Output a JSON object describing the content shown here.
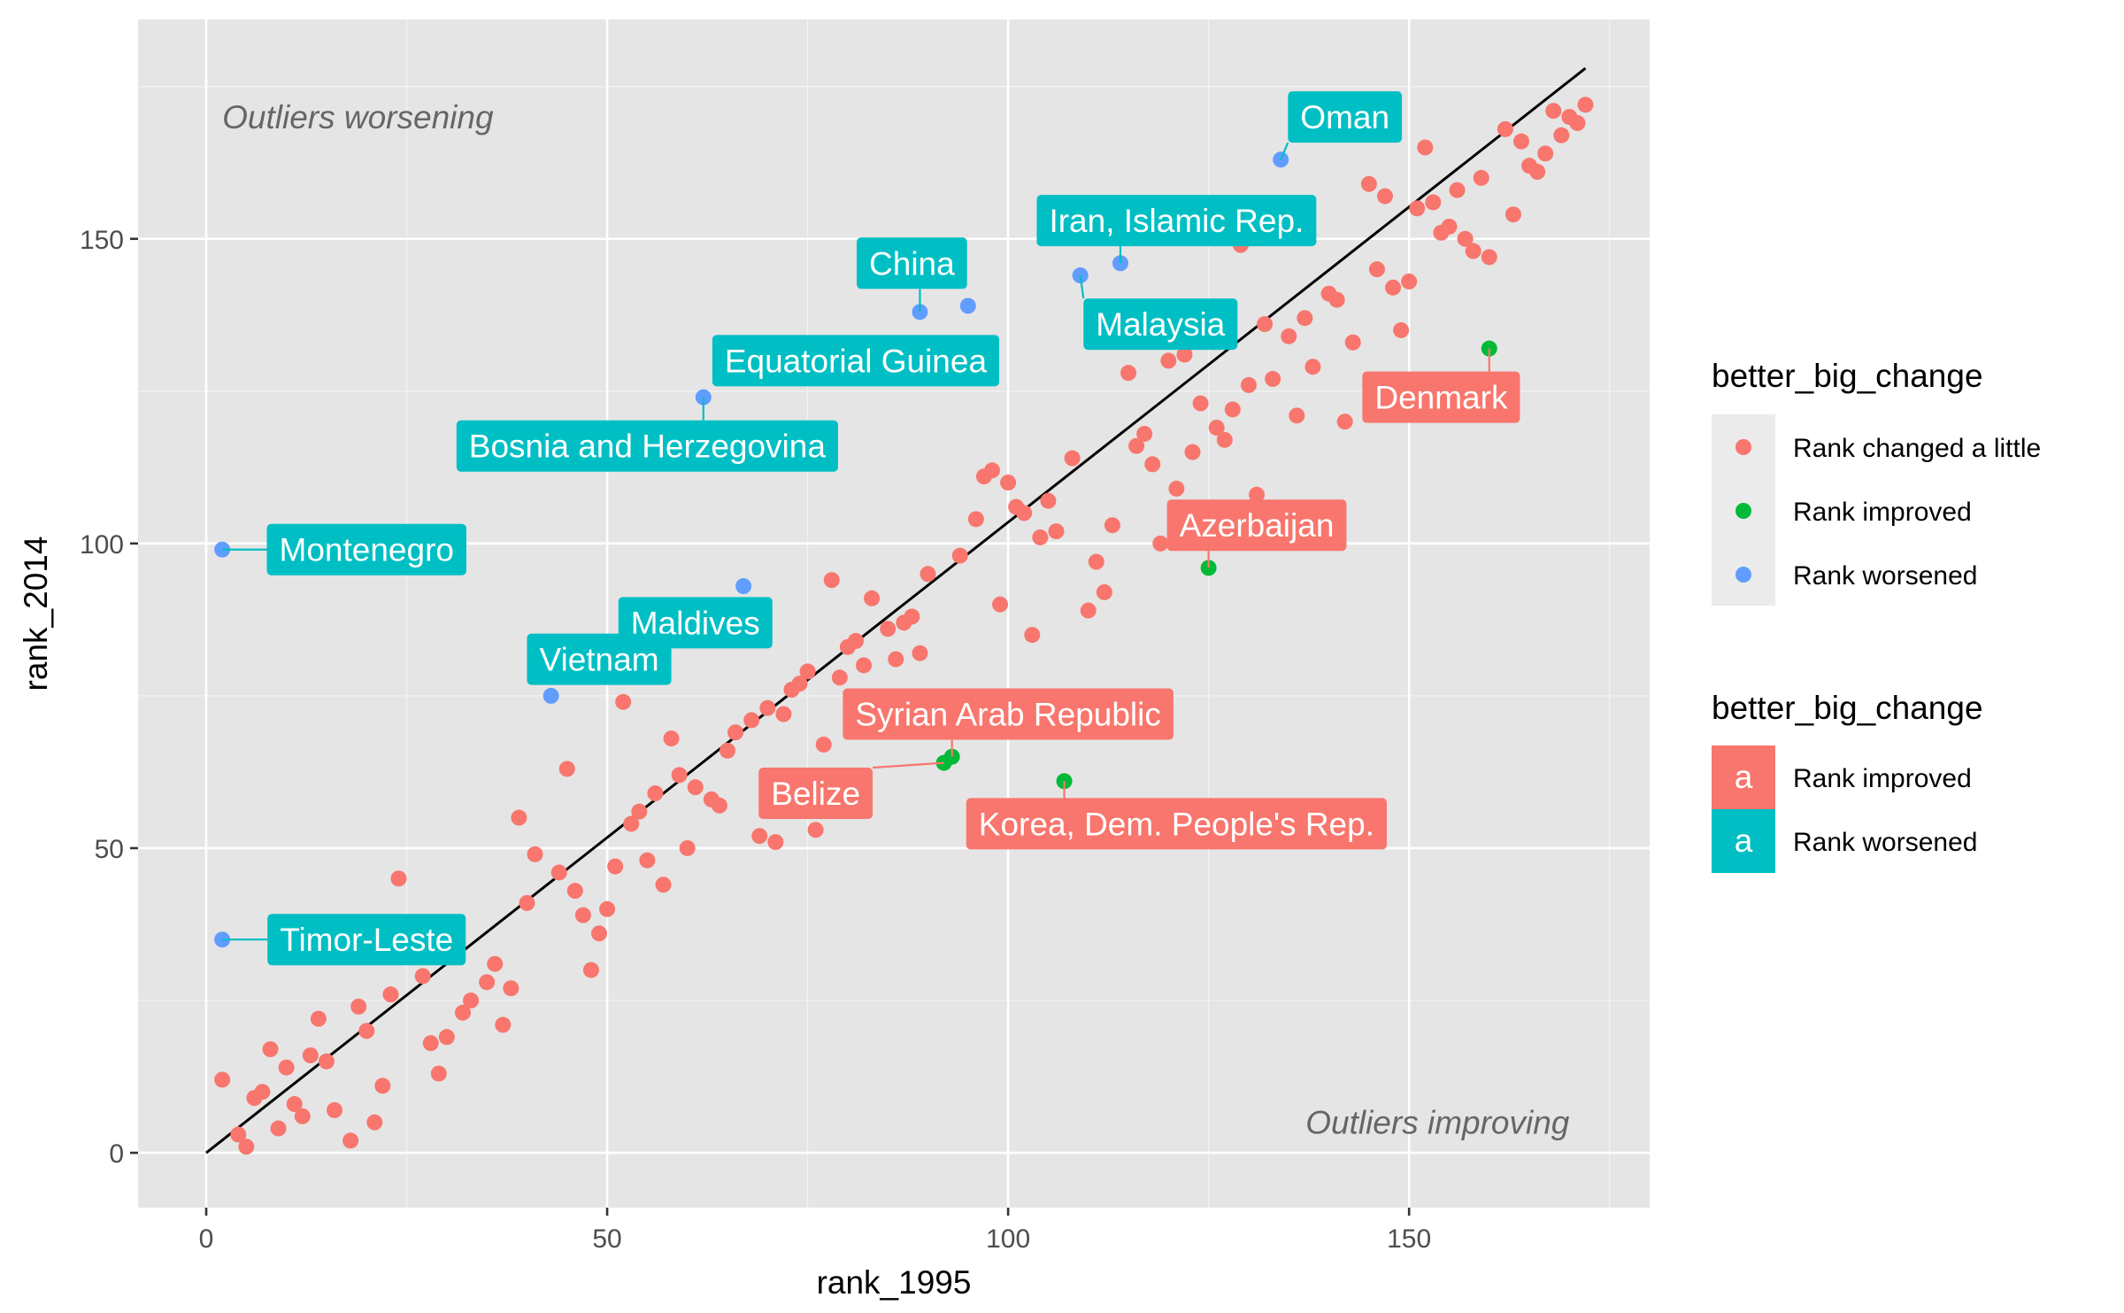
{
  "chart_data": {
    "type": "scatter",
    "xlabel": "rank_1995",
    "ylabel": "rank_2014",
    "xlim": [
      -8.5,
      180
    ],
    "ylim": [
      -9,
      186
    ],
    "x_ticks": [
      0,
      50,
      100,
      150
    ],
    "y_ticks": [
      0,
      50,
      100,
      150
    ],
    "x_tick_labels": [
      "0",
      "50",
      "100",
      "150"
    ],
    "y_tick_labels": [
      "0",
      "50",
      "100",
      "150"
    ],
    "grid": true,
    "panel_background": "#e5e5e5",
    "reference_line": {
      "x": [
        0,
        172
      ],
      "y": [
        0,
        178
      ],
      "color": "#000000"
    },
    "annotations": [
      {
        "text": "Outliers worsening",
        "x": 2,
        "y": 170,
        "anchor": "start"
      },
      {
        "text": "Outliers improving",
        "x": 170,
        "y": 5,
        "anchor": "end"
      }
    ],
    "legend_points": {
      "title": "better_big_change",
      "position": "right",
      "entries": [
        {
          "label": "Rank changed a little",
          "color": "#F8766D"
        },
        {
          "label": "Rank improved",
          "color": "#00BA38"
        },
        {
          "label": "Rank worsened",
          "color": "#619CFF"
        }
      ]
    },
    "legend_labels": {
      "title": "better_big_change",
      "key_glyph": "a",
      "entries": [
        {
          "label": "Rank improved",
          "color": "#F8766D"
        },
        {
          "label": "Rank worsened",
          "color": "#00BFC4"
        }
      ]
    },
    "series": [
      {
        "name": "Rank changed a little",
        "color": "#F8766D",
        "points": [
          [
            2,
            12
          ],
          [
            4,
            3
          ],
          [
            5,
            1
          ],
          [
            6,
            9
          ],
          [
            7,
            10
          ],
          [
            8,
            17
          ],
          [
            9,
            4
          ],
          [
            10,
            14
          ],
          [
            11,
            8
          ],
          [
            12,
            6
          ],
          [
            13,
            16
          ],
          [
            14,
            22
          ],
          [
            15,
            15
          ],
          [
            16,
            7
          ],
          [
            18,
            2
          ],
          [
            19,
            24
          ],
          [
            20,
            20
          ],
          [
            21,
            5
          ],
          [
            22,
            11
          ],
          [
            23,
            26
          ],
          [
            24,
            45
          ],
          [
            27,
            29
          ],
          [
            28,
            18
          ],
          [
            29,
            13
          ],
          [
            30,
            19
          ],
          [
            32,
            23
          ],
          [
            33,
            25
          ],
          [
            35,
            28
          ],
          [
            36,
            31
          ],
          [
            37,
            21
          ],
          [
            38,
            27
          ],
          [
            39,
            55
          ],
          [
            40,
            41
          ],
          [
            41,
            49
          ],
          [
            44,
            46
          ],
          [
            45,
            63
          ],
          [
            46,
            43
          ],
          [
            47,
            39
          ],
          [
            48,
            30
          ],
          [
            49,
            36
          ],
          [
            50,
            40
          ],
          [
            51,
            47
          ],
          [
            52,
            74
          ],
          [
            53,
            54
          ],
          [
            54,
            56
          ],
          [
            55,
            48
          ],
          [
            56,
            59
          ],
          [
            57,
            44
          ],
          [
            58,
            68
          ],
          [
            59,
            62
          ],
          [
            60,
            50
          ],
          [
            61,
            60
          ],
          [
            63,
            58
          ],
          [
            64,
            57
          ],
          [
            65,
            66
          ],
          [
            66,
            69
          ],
          [
            68,
            71
          ],
          [
            69,
            52
          ],
          [
            70,
            73
          ],
          [
            71,
            51
          ],
          [
            72,
            72
          ],
          [
            73,
            76
          ],
          [
            74,
            77
          ],
          [
            75,
            79
          ],
          [
            76,
            53
          ],
          [
            77,
            67
          ],
          [
            78,
            94
          ],
          [
            79,
            78
          ],
          [
            80,
            83
          ],
          [
            81,
            84
          ],
          [
            82,
            80
          ],
          [
            83,
            91
          ],
          [
            85,
            86
          ],
          [
            86,
            81
          ],
          [
            87,
            87
          ],
          [
            88,
            88
          ],
          [
            89,
            82
          ],
          [
            90,
            95
          ],
          [
            94,
            98
          ],
          [
            96,
            104
          ],
          [
            97,
            111
          ],
          [
            98,
            112
          ],
          [
            99,
            90
          ],
          [
            100,
            110
          ],
          [
            101,
            106
          ],
          [
            102,
            105
          ],
          [
            103,
            85
          ],
          [
            104,
            101
          ],
          [
            105,
            107
          ],
          [
            106,
            102
          ],
          [
            108,
            114
          ],
          [
            110,
            89
          ],
          [
            111,
            97
          ],
          [
            112,
            92
          ],
          [
            113,
            103
          ],
          [
            115,
            128
          ],
          [
            116,
            116
          ],
          [
            117,
            118
          ],
          [
            118,
            113
          ],
          [
            119,
            100
          ],
          [
            120,
            130
          ],
          [
            121,
            109
          ],
          [
            122,
            131
          ],
          [
            123,
            115
          ],
          [
            124,
            123
          ],
          [
            126,
            119
          ],
          [
            127,
            117
          ],
          [
            128,
            122
          ],
          [
            129,
            149
          ],
          [
            130,
            126
          ],
          [
            131,
            108
          ],
          [
            132,
            136
          ],
          [
            133,
            127
          ],
          [
            135,
            134
          ],
          [
            136,
            121
          ],
          [
            137,
            137
          ],
          [
            138,
            129
          ],
          [
            140,
            141
          ],
          [
            141,
            140
          ],
          [
            142,
            120
          ],
          [
            143,
            133
          ],
          [
            145,
            159
          ],
          [
            146,
            145
          ],
          [
            147,
            157
          ],
          [
            148,
            142
          ],
          [
            149,
            135
          ],
          [
            150,
            143
          ],
          [
            151,
            155
          ],
          [
            152,
            165
          ],
          [
            153,
            156
          ],
          [
            154,
            151
          ],
          [
            155,
            152
          ],
          [
            156,
            158
          ],
          [
            157,
            150
          ],
          [
            158,
            148
          ],
          [
            159,
            160
          ],
          [
            160,
            147
          ],
          [
            162,
            168
          ],
          [
            163,
            154
          ],
          [
            164,
            166
          ],
          [
            165,
            162
          ],
          [
            166,
            161
          ],
          [
            167,
            164
          ],
          [
            168,
            171
          ],
          [
            169,
            167
          ],
          [
            170,
            170
          ],
          [
            171,
            169
          ],
          [
            172,
            172
          ]
        ]
      },
      {
        "name": "Rank improved",
        "color": "#00BA38",
        "points": [
          [
            92,
            64
          ],
          [
            93,
            65
          ],
          [
            107,
            61
          ],
          [
            125,
            96
          ],
          [
            160,
            132
          ]
        ]
      },
      {
        "name": "Rank worsened",
        "color": "#619CFF",
        "points": [
          [
            2,
            99
          ],
          [
            2,
            35
          ],
          [
            43,
            75
          ],
          [
            62,
            124
          ],
          [
            67,
            93
          ],
          [
            89,
            138
          ],
          [
            95,
            139
          ],
          [
            109,
            144
          ],
          [
            114,
            146
          ],
          [
            134,
            163
          ]
        ]
      }
    ],
    "labels": [
      {
        "text": "Oman",
        "x": 134,
        "y": 163,
        "lx": 142,
        "ly": 170,
        "color": "#00BFC4"
      },
      {
        "text": "Iran, Islamic Rep.",
        "x": 114,
        "y": 146,
        "lx": 121,
        "ly": 153,
        "color": "#00BFC4"
      },
      {
        "text": "China",
        "x": 89,
        "y": 138,
        "lx": 88,
        "ly": 146,
        "color": "#00BFC4"
      },
      {
        "text": "Malaysia",
        "x": 109,
        "y": 144,
        "lx": 119,
        "ly": 136,
        "color": "#00BFC4"
      },
      {
        "text": "Equatorial Guinea",
        "x": 62,
        "y": 124,
        "lx": 81,
        "ly": 130,
        "color": "#00BFC4"
      },
      {
        "text": "Bosnia and Herzegovina",
        "x": 62,
        "y": 124,
        "lx": 55,
        "ly": 116,
        "color": "#00BFC4"
      },
      {
        "text": "Montenegro",
        "x": 2,
        "y": 99,
        "lx": 20,
        "ly": 99,
        "color": "#00BFC4"
      },
      {
        "text": "Maldives",
        "x": 67,
        "y": 93,
        "lx": 61,
        "ly": 87,
        "color": "#00BFC4"
      },
      {
        "text": "Vietnam",
        "x": 43,
        "y": 75,
        "lx": 49,
        "ly": 81,
        "color": "#00BFC4"
      },
      {
        "text": "Timor-Leste",
        "x": 2,
        "y": 35,
        "lx": 20,
        "ly": 35,
        "color": "#00BFC4"
      },
      {
        "text": "Denmark",
        "x": 160,
        "y": 132,
        "lx": 154,
        "ly": 124,
        "color": "#F8766D"
      },
      {
        "text": "Azerbaijan",
        "x": 125,
        "y": 96,
        "lx": 131,
        "ly": 103,
        "color": "#F8766D"
      },
      {
        "text": "Syrian Arab Republic",
        "x": 93,
        "y": 65,
        "lx": 100,
        "ly": 72,
        "color": "#F8766D"
      },
      {
        "text": "Belize",
        "x": 92,
        "y": 64,
        "lx": 76,
        "ly": 59,
        "color": "#F8766D"
      },
      {
        "text": "Korea, Dem. People's Rep.",
        "x": 107,
        "y": 61,
        "lx": 121,
        "ly": 54,
        "color": "#F8766D"
      }
    ]
  }
}
